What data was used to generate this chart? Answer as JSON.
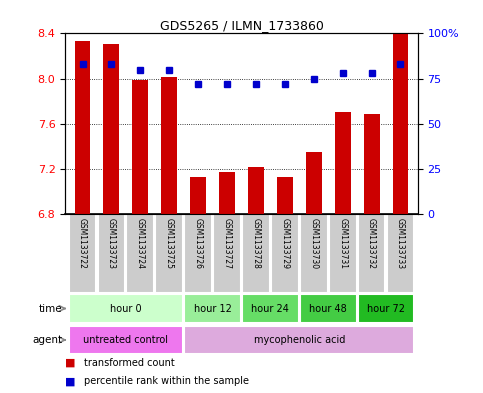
{
  "title": "GDS5265 / ILMN_1733860",
  "samples": [
    "GSM1133722",
    "GSM1133723",
    "GSM1133724",
    "GSM1133725",
    "GSM1133726",
    "GSM1133727",
    "GSM1133728",
    "GSM1133729",
    "GSM1133730",
    "GSM1133731",
    "GSM1133732",
    "GSM1133733"
  ],
  "bar_values": [
    8.33,
    8.31,
    7.99,
    8.01,
    7.13,
    7.17,
    7.22,
    7.13,
    7.35,
    7.7,
    7.69,
    8.4
  ],
  "percentile_values": [
    83,
    83,
    80,
    80,
    72,
    72,
    72,
    72,
    75,
    78,
    78,
    83
  ],
  "ylim_left": [
    6.8,
    8.4
  ],
  "ylim_right": [
    0,
    100
  ],
  "bar_color": "#cc0000",
  "percentile_color": "#0000cc",
  "bar_bottom": 6.8,
  "yticks_left": [
    6.8,
    7.2,
    7.6,
    8.0,
    8.4
  ],
  "yticks_right": [
    0,
    25,
    50,
    75,
    100
  ],
  "ytick_labels_right": [
    "0",
    "25",
    "50",
    "75",
    "100%"
  ],
  "time_groups": [
    {
      "label": "hour 0",
      "start": 0,
      "end": 4,
      "color": "#ccffcc"
    },
    {
      "label": "hour 12",
      "start": 4,
      "end": 6,
      "color": "#99ee99"
    },
    {
      "label": "hour 24",
      "start": 6,
      "end": 8,
      "color": "#66dd66"
    },
    {
      "label": "hour 48",
      "start": 8,
      "end": 10,
      "color": "#44cc44"
    },
    {
      "label": "hour 72",
      "start": 10,
      "end": 12,
      "color": "#22bb22"
    }
  ],
  "agent_groups": [
    {
      "label": "untreated control",
      "start": 0,
      "end": 4,
      "color": "#ee77ee"
    },
    {
      "label": "mycophenolic acid",
      "start": 4,
      "end": 12,
      "color": "#ddaadd"
    }
  ],
  "legend_bar_label": "transformed count",
  "legend_pct_label": "percentile rank within the sample",
  "bg_color": "#ffffff",
  "plot_bg_color": "#ffffff",
  "sample_bg_color": "#cccccc",
  "sample_sep_color": "#ffffff"
}
